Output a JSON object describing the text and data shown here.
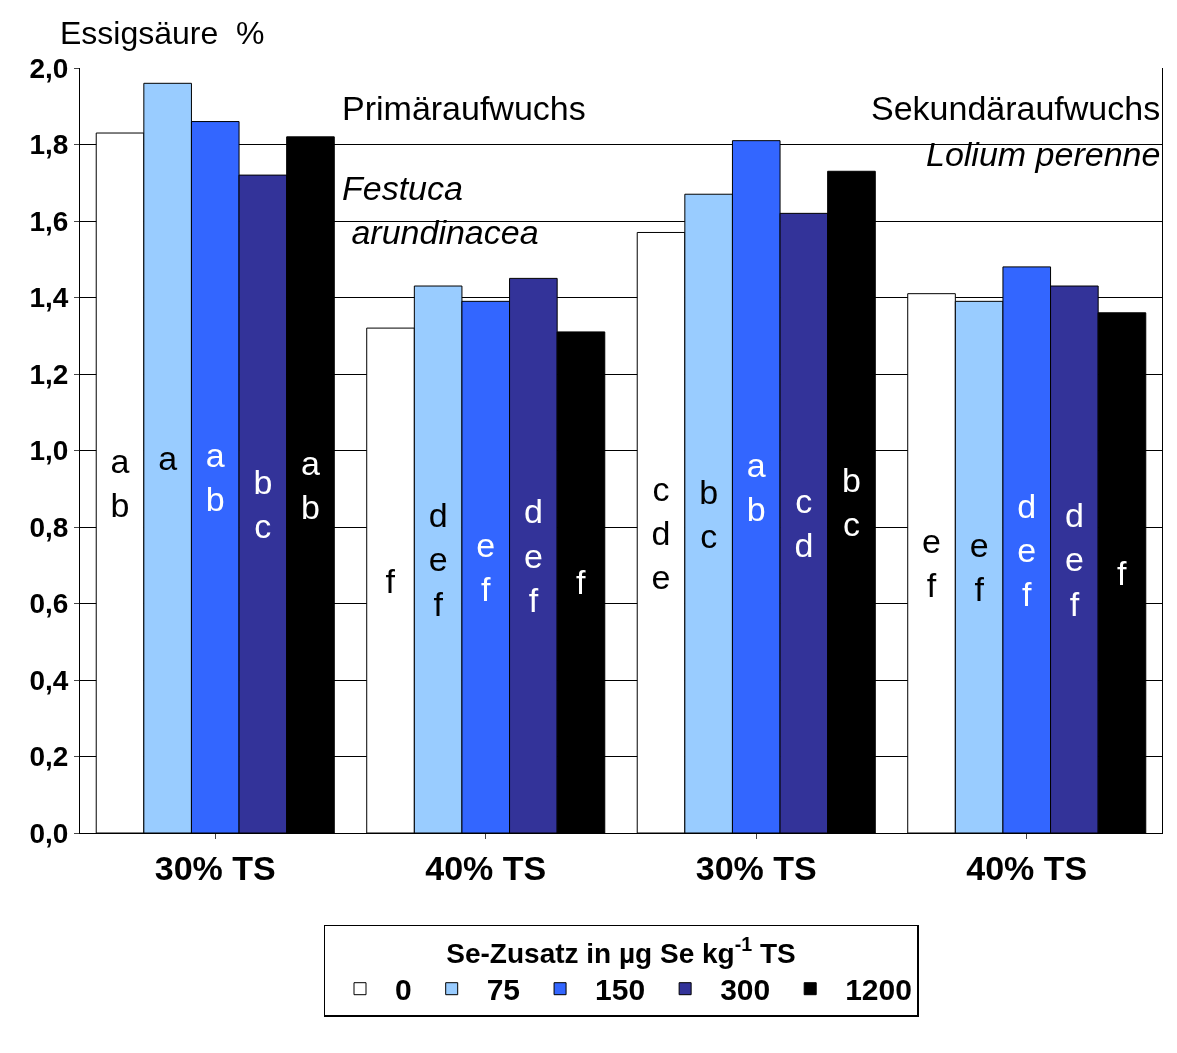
{
  "chart_data": {
    "type": "bar",
    "ylabel": "Essigsäure  %",
    "legend_title": "Se-Zusatz in µg Se kg$^{-1}$ TS",
    "categories": [
      "30% TS",
      "40% TS",
      "30% TS",
      "40% TS"
    ],
    "series": [
      {
        "name": "0",
        "color": "#ffffff",
        "values": [
          1.83,
          1.32,
          1.57,
          1.41
        ],
        "value_labels": [
          "a\nb",
          "f",
          "c\nd\ne",
          "e\nf"
        ]
      },
      {
        "name": "75",
        "color": "#99ccff",
        "values": [
          1.96,
          1.43,
          1.67,
          1.39
        ],
        "value_labels": [
          "a",
          "d\ne\nf",
          "b\nc",
          "e\nf"
        ]
      },
      {
        "name": "150",
        "color": "#3366ff",
        "values": [
          1.86,
          1.39,
          1.81,
          1.48
        ],
        "value_labels": [
          "a\nb",
          "e\nf",
          "a\nb",
          "d\ne\nf"
        ]
      },
      {
        "name": "300",
        "color": "#333399",
        "values": [
          1.72,
          1.45,
          1.62,
          1.43
        ],
        "value_labels": [
          "b\nc",
          "d\ne\nf",
          "c\nd",
          "d\ne\nf"
        ]
      },
      {
        "name": "1200",
        "color": "#000000",
        "values": [
          1.82,
          1.31,
          1.73,
          1.36
        ],
        "value_labels": [
          "a\nb",
          "f",
          "b\nc",
          "f"
        ]
      }
    ],
    "ylim": [
      0,
      2
    ],
    "yticks": [
      {
        "value": 0,
        "label": "0,0"
      },
      {
        "value": 0.2,
        "label": "0,2"
      },
      {
        "value": 0.4,
        "label": "0,4"
      },
      {
        "value": 0.6,
        "label": "0,6"
      },
      {
        "value": 0.8,
        "label": "0,8"
      },
      {
        "value": 1,
        "label": "1,0"
      },
      {
        "value": 1.2,
        "label": "1,2"
      },
      {
        "value": 1.4,
        "label": "1,4"
      },
      {
        "value": 1.6,
        "label": "1,6"
      },
      {
        "value": 1.8,
        "label": "1,8"
      },
      {
        "value": 2,
        "label": "2,0"
      }
    ],
    "grid": "y",
    "legend": "bottom",
    "annotations": [
      "Primäraufwuchs",
      "Festuca\n arundinacea",
      "Sekundäraufwuchs",
      "Lolium perenne"
    ]
  }
}
